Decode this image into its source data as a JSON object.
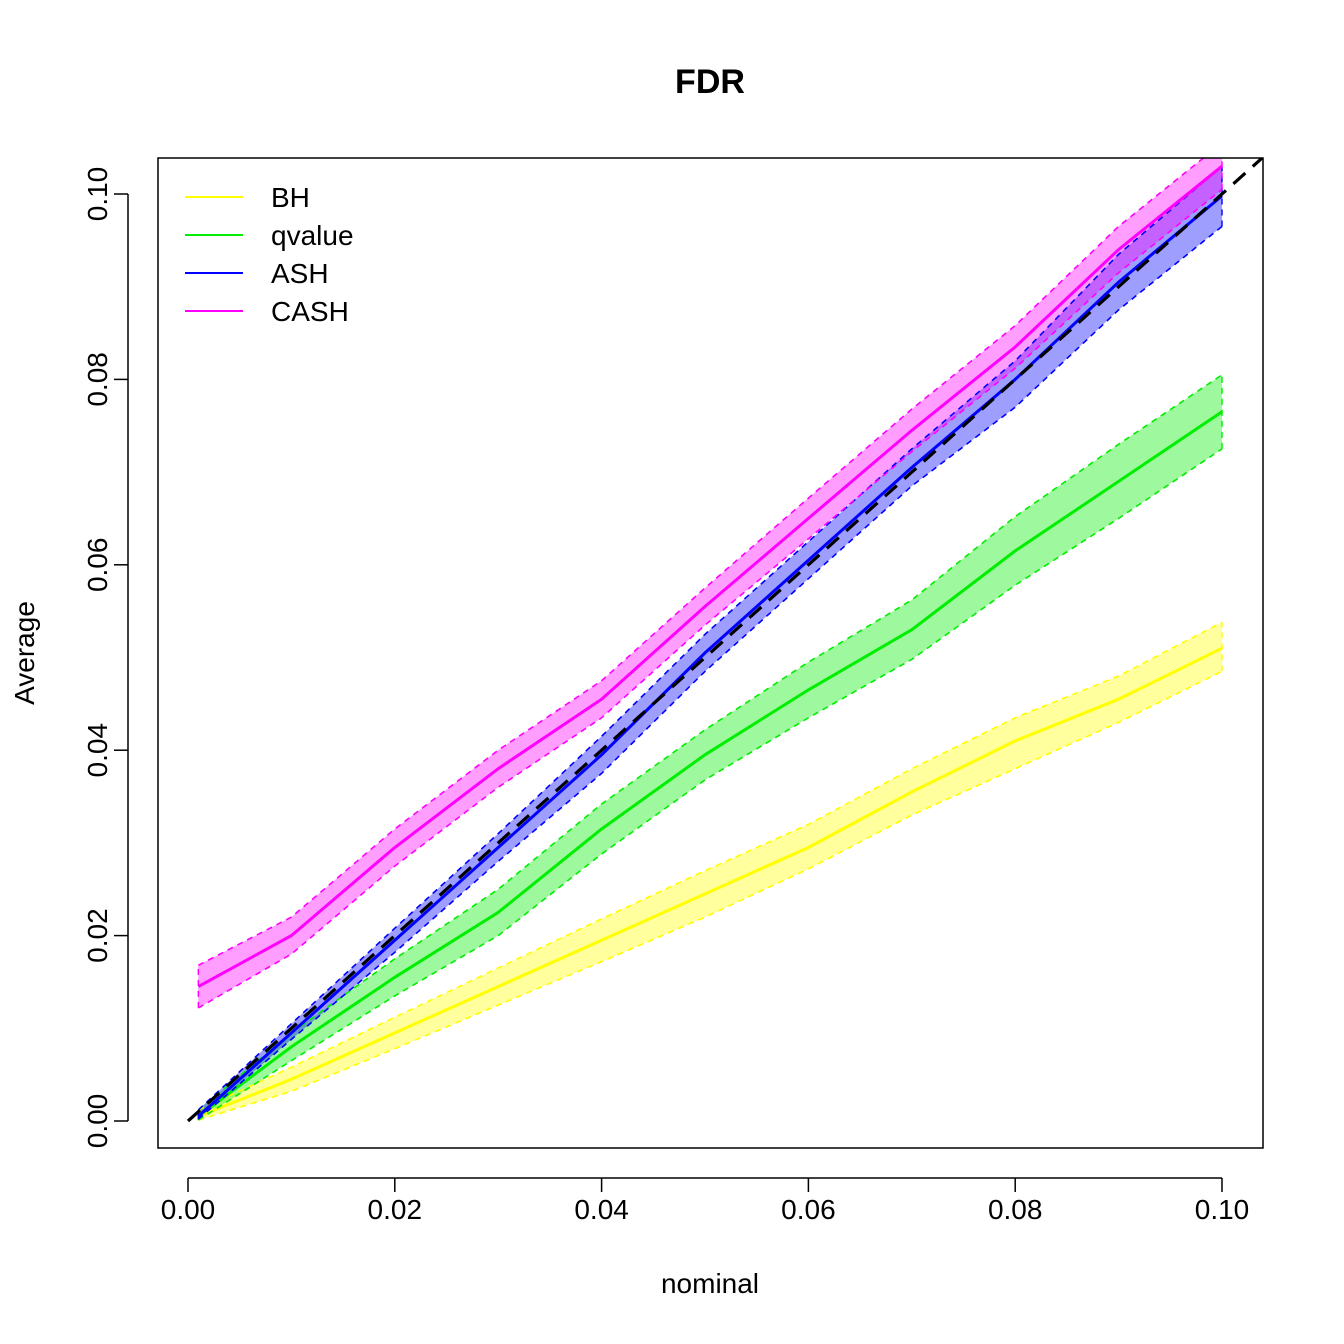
{
  "chart_data": {
    "type": "line",
    "title": "FDR",
    "xlabel": "nominal",
    "ylabel": "Average",
    "xlim": [
      0.0,
      0.104
    ],
    "ylim": [
      -0.003,
      0.104
    ],
    "x_ticks": [
      "0.00",
      "0.02",
      "0.04",
      "0.06",
      "0.08",
      "0.10"
    ],
    "y_ticks": [
      "0.00",
      "0.02",
      "0.04",
      "0.06",
      "0.08",
      "0.10"
    ],
    "legend_position": "top-left",
    "reference_line": {
      "slope": 1,
      "intercept": 0,
      "style": "dashed",
      "color": "#000000"
    },
    "series": [
      {
        "name": "BH",
        "color": "#ffff00",
        "x": [
          0.001,
          0.01,
          0.02,
          0.03,
          0.04,
          0.05,
          0.06,
          0.07,
          0.08,
          0.09,
          0.1
        ],
        "mean": [
          0.0005,
          0.0045,
          0.0095,
          0.0145,
          0.0195,
          0.0245,
          0.0295,
          0.0355,
          0.041,
          0.0455,
          0.051
        ],
        "lower": [
          0.0001,
          0.0032,
          0.0078,
          0.0125,
          0.0172,
          0.022,
          0.0272,
          0.033,
          0.038,
          0.043,
          0.0485
        ],
        "upper": [
          0.0012,
          0.0058,
          0.0112,
          0.0165,
          0.0218,
          0.027,
          0.032,
          0.038,
          0.0435,
          0.048,
          0.0538
        ]
      },
      {
        "name": "qvalue",
        "color": "#00ee00",
        "x": [
          0.001,
          0.01,
          0.02,
          0.03,
          0.04,
          0.05,
          0.06,
          0.07,
          0.08,
          0.09,
          0.1
        ],
        "mean": [
          0.0005,
          0.008,
          0.0155,
          0.0225,
          0.0315,
          0.0395,
          0.0465,
          0.053,
          0.0615,
          0.069,
          0.0765
        ],
        "lower": [
          0.0001,
          0.0065,
          0.0135,
          0.02,
          0.0288,
          0.0368,
          0.0435,
          0.0498,
          0.0578,
          0.065,
          0.0725
        ],
        "upper": [
          0.0012,
          0.0095,
          0.0175,
          0.025,
          0.0342,
          0.0422,
          0.0495,
          0.0562,
          0.0652,
          0.073,
          0.0805
        ]
      },
      {
        "name": "ASH",
        "color": "#0000ff",
        "x": [
          0.001,
          0.01,
          0.02,
          0.03,
          0.04,
          0.05,
          0.06,
          0.07,
          0.08,
          0.09,
          0.1
        ],
        "mean": [
          0.0005,
          0.0095,
          0.0195,
          0.0295,
          0.0395,
          0.0505,
          0.0605,
          0.0705,
          0.08,
          0.0905,
          0.0998
        ],
        "lower": [
          0.0002,
          0.0088,
          0.0182,
          0.028,
          0.0375,
          0.0485,
          0.0585,
          0.0685,
          0.077,
          0.0875,
          0.0965
        ],
        "upper": [
          0.0012,
          0.0105,
          0.0208,
          0.031,
          0.0415,
          0.0525,
          0.0625,
          0.0725,
          0.082,
          0.0935,
          0.103
        ]
      },
      {
        "name": "CASH",
        "color": "#ff00ff",
        "x": [
          0.001,
          0.01,
          0.02,
          0.03,
          0.04,
          0.05,
          0.06,
          0.07,
          0.08,
          0.09,
          0.1
        ],
        "mean": [
          0.0145,
          0.02,
          0.0295,
          0.038,
          0.0455,
          0.0555,
          0.065,
          0.0745,
          0.0835,
          0.094,
          0.103
        ],
        "lower": [
          0.0122,
          0.018,
          0.0275,
          0.036,
          0.0435,
          0.0535,
          0.0628,
          0.0722,
          0.0812,
          0.0915,
          0.1005
        ],
        "upper": [
          0.0168,
          0.022,
          0.0315,
          0.04,
          0.0475,
          0.0575,
          0.0672,
          0.0768,
          0.0858,
          0.0965,
          0.1055
        ]
      }
    ]
  }
}
